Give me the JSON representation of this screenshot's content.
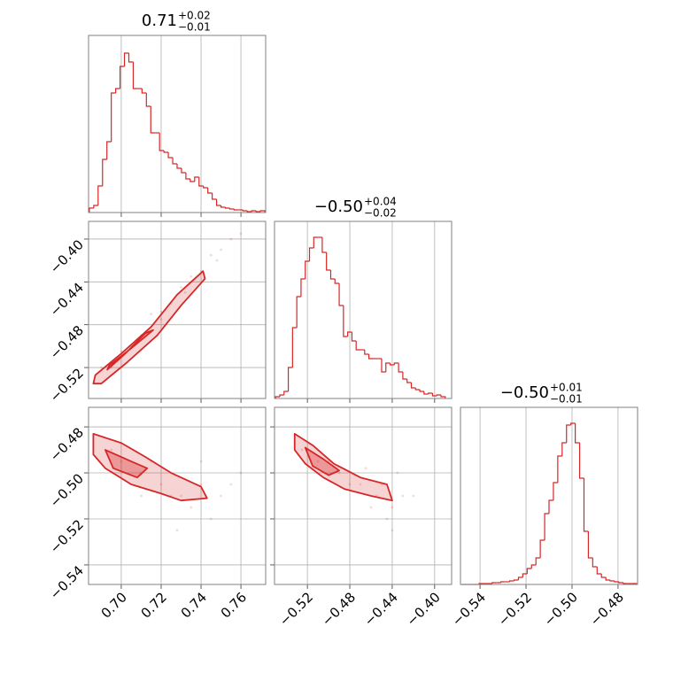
{
  "chart_data": [
    {
      "type": "histogram",
      "title": "0.71",
      "title_upper": "+0.02",
      "title_lower": "−0.01",
      "color": "#d62728",
      "grid": true,
      "bins": [
        0.684,
        0.6862,
        0.6884,
        0.6906,
        0.6928,
        0.695,
        0.6972,
        0.6994,
        0.7016,
        0.7038,
        0.706,
        0.7082,
        0.7104,
        0.7126,
        0.7148,
        0.717,
        0.7192,
        0.7214,
        0.7236,
        0.7258,
        0.728,
        0.7302,
        0.7324,
        0.7346,
        0.7368,
        0.739,
        0.7412,
        0.7434,
        0.7456,
        0.7478,
        0.75,
        0.7522,
        0.7544,
        0.7566,
        0.7588,
        0.761,
        0.7632,
        0.7654,
        0.7676,
        0.7698,
        0.772
      ],
      "values": [
        5,
        8,
        30,
        60,
        80,
        135,
        140,
        165,
        180,
        170,
        140,
        140,
        135,
        120,
        90,
        90,
        70,
        68,
        62,
        55,
        50,
        45,
        38,
        35,
        40,
        30,
        28,
        22,
        15,
        8,
        6,
        5,
        4,
        3,
        3,
        2,
        1,
        2,
        1,
        2
      ],
      "xlim": [
        0.6836,
        0.7724
      ],
      "xticks": [
        0.7,
        0.72,
        0.74,
        0.76
      ],
      "ylim": [
        0,
        200
      ],
      "yticks": []
    },
    {
      "type": "contour",
      "color": "#d62728",
      "grid": true,
      "samples": {
        "x": [
          0.69,
          0.7,
          0.71,
          0.72,
          0.73,
          0.745,
          0.75,
          0.755,
          0.74,
          0.735,
          0.725,
          0.715,
          0.705,
          0.695,
          0.76,
          0.748,
          0.732,
          0.72
        ],
        "y": [
          -0.52,
          -0.505,
          -0.49,
          -0.468,
          -0.445,
          -0.415,
          -0.41,
          -0.4,
          -0.43,
          -0.435,
          -0.46,
          -0.47,
          -0.5,
          -0.52,
          -0.395,
          -0.42,
          -0.45,
          -0.475
        ]
      },
      "contours": [
        {
          "x": [
            0.687,
            0.7,
            0.715,
            0.728,
            0.741,
            0.742,
            0.73,
            0.718,
            0.703,
            0.69,
            0.686
          ],
          "y": [
            -0.527,
            -0.507,
            -0.482,
            -0.452,
            -0.43,
            -0.437,
            -0.462,
            -0.49,
            -0.515,
            -0.535,
            -0.535
          ]
        },
        {
          "x": [
            0.694,
            0.705,
            0.716,
            0.712,
            0.702,
            0.693
          ],
          "y": [
            -0.518,
            -0.502,
            -0.485,
            -0.488,
            -0.507,
            -0.522
          ]
        }
      ],
      "xlim": [
        0.6836,
        0.7724
      ],
      "xticks": [
        0.7,
        0.72,
        0.74,
        0.76
      ],
      "ylim": [
        -0.5489,
        -0.3835
      ],
      "yticks": [
        {
          "value": -0.4,
          "label": "−0.40"
        },
        {
          "value": -0.44,
          "label": "−0.44"
        },
        {
          "value": -0.48,
          "label": "−0.48"
        },
        {
          "value": -0.52,
          "label": "−0.52"
        }
      ]
    },
    {
      "type": "histogram",
      "title": "−0.50",
      "title_upper": "+0.04",
      "title_lower": "−0.02",
      "color": "#d62728",
      "grid": true,
      "bins": [
        -0.55,
        -0.546,
        -0.542,
        -0.538,
        -0.534,
        -0.53,
        -0.526,
        -0.522,
        -0.518,
        -0.514,
        -0.51,
        -0.506,
        -0.502,
        -0.498,
        -0.494,
        -0.49,
        -0.486,
        -0.482,
        -0.478,
        -0.474,
        -0.47,
        -0.466,
        -0.462,
        -0.458,
        -0.454,
        -0.45,
        -0.446,
        -0.442,
        -0.438,
        -0.434,
        -0.43,
        -0.426,
        -0.422,
        -0.418,
        -0.414,
        -0.41,
        -0.406,
        -0.402,
        -0.398,
        -0.394,
        -0.39
      ],
      "values": [
        2,
        4,
        8,
        35,
        80,
        115,
        135,
        155,
        170,
        182,
        182,
        165,
        145,
        135,
        130,
        105,
        70,
        75,
        65,
        55,
        55,
        50,
        45,
        45,
        45,
        30,
        40,
        38,
        40,
        30,
        22,
        18,
        12,
        10,
        8,
        5,
        6,
        3,
        4,
        2
      ],
      "xlim": [
        -0.551,
        -0.384
      ],
      "xticks": [
        -0.52,
        -0.48,
        -0.44,
        -0.4
      ],
      "ylim": [
        0,
        200
      ],
      "yticks": []
    },
    {
      "type": "contour",
      "color": "#d62728",
      "grid": true,
      "samples": {
        "x": [
          0.695,
          0.71,
          0.72,
          0.73,
          0.74,
          0.75,
          0.745,
          0.735,
          0.725,
          0.715,
          0.7,
          0.755,
          0.728,
          0.71,
          0.74,
          0.76
        ],
        "y": [
          -0.49,
          -0.5,
          -0.505,
          -0.51,
          -0.505,
          -0.51,
          -0.52,
          -0.515,
          -0.51,
          -0.495,
          -0.495,
          -0.505,
          -0.525,
          -0.51,
          -0.495,
          -0.5
        ]
      },
      "contours": [
        {
          "x": [
            0.686,
            0.7,
            0.712,
            0.725,
            0.74,
            0.743,
            0.73,
            0.72,
            0.705,
            0.692,
            0.686
          ],
          "y": [
            -0.483,
            -0.487,
            -0.493,
            -0.5,
            -0.506,
            -0.511,
            -0.512,
            -0.509,
            -0.505,
            -0.498,
            -0.492
          ]
        },
        {
          "x": [
            0.692,
            0.705,
            0.713,
            0.708,
            0.696
          ],
          "y": [
            -0.49,
            -0.495,
            -0.498,
            -0.502,
            -0.498
          ]
        }
      ],
      "xlim": [
        0.6836,
        0.7724
      ],
      "xticks": [
        {
          "value": 0.7,
          "label": "0.70"
        },
        {
          "value": 0.72,
          "label": "0.72"
        },
        {
          "value": 0.74,
          "label": "0.74"
        },
        {
          "value": 0.76,
          "label": "0.76"
        }
      ],
      "ylim": [
        -0.5485,
        -0.4715
      ],
      "yticks": [
        {
          "value": -0.48,
          "label": "−0.48"
        },
        {
          "value": -0.5,
          "label": "−0.50"
        },
        {
          "value": -0.52,
          "label": "−0.52"
        },
        {
          "value": -0.54,
          "label": "−0.54"
        }
      ]
    },
    {
      "type": "contour",
      "color": "#d62728",
      "grid": true,
      "samples": {
        "x": [
          -0.525,
          -0.51,
          -0.49,
          -0.47,
          -0.455,
          -0.44,
          -0.43,
          -0.445,
          -0.46,
          -0.48,
          -0.5,
          -0.435,
          -0.42,
          -0.45,
          -0.465,
          -0.44
        ],
        "y": [
          -0.49,
          -0.495,
          -0.5,
          -0.505,
          -0.51,
          -0.515,
          -0.51,
          -0.52,
          -0.515,
          -0.505,
          -0.495,
          -0.5,
          -0.51,
          -0.505,
          -0.498,
          -0.525
        ]
      },
      "contours": [
        {
          "x": [
            -0.532,
            -0.515,
            -0.495,
            -0.47,
            -0.445,
            -0.44,
            -0.46,
            -0.485,
            -0.505,
            -0.522,
            -0.532
          ],
          "y": [
            -0.483,
            -0.488,
            -0.496,
            -0.502,
            -0.505,
            -0.512,
            -0.51,
            -0.507,
            -0.502,
            -0.496,
            -0.49
          ]
        },
        {
          "x": [
            -0.522,
            -0.505,
            -0.49,
            -0.5,
            -0.515
          ],
          "y": [
            -0.489,
            -0.494,
            -0.499,
            -0.501,
            -0.497
          ]
        }
      ],
      "xlim": [
        -0.551,
        -0.384
      ],
      "xticks": [
        {
          "value": -0.52,
          "label": "−0.52"
        },
        {
          "value": -0.48,
          "label": "−0.48"
        },
        {
          "value": -0.44,
          "label": "−0.44"
        },
        {
          "value": -0.4,
          "label": "−0.40"
        }
      ],
      "ylim": [
        -0.5485,
        -0.4715
      ],
      "yticks": [
        -0.48,
        -0.5,
        -0.52,
        -0.54
      ]
    },
    {
      "type": "histogram",
      "title": "−0.50",
      "title_upper": "+0.01",
      "title_lower": "−0.01",
      "color": "#d62728",
      "grid": true,
      "bins": [
        -0.548,
        -0.5461,
        -0.5442,
        -0.5423,
        -0.5404,
        -0.5385,
        -0.5366,
        -0.5347,
        -0.5328,
        -0.5309,
        -0.529,
        -0.5271,
        -0.5252,
        -0.5233,
        -0.5214,
        -0.5195,
        -0.5176,
        -0.5157,
        -0.5138,
        -0.5119,
        -0.51,
        -0.5081,
        -0.5062,
        -0.5043,
        -0.5024,
        -0.5005,
        -0.4986,
        -0.4967,
        -0.4948,
        -0.4929,
        -0.491,
        -0.4891,
        -0.4872,
        -0.4853,
        -0.4834,
        -0.4815,
        -0.4796,
        -0.4777,
        -0.4758,
        -0.4739,
        -0.472
      ],
      "values": [
        0,
        0,
        0,
        0,
        1,
        1,
        1,
        2,
        2,
        3,
        3,
        4,
        5,
        8,
        12,
        18,
        22,
        30,
        50,
        80,
        95,
        115,
        145,
        160,
        180,
        182,
        160,
        120,
        60,
        30,
        20,
        12,
        8,
        5,
        4,
        3,
        2,
        1,
        1,
        1
      ],
      "xlim": [
        -0.5485,
        -0.4715
      ],
      "xticks": [
        {
          "value": -0.54,
          "label": "−0.54"
        },
        {
          "value": -0.52,
          "label": "−0.52"
        },
        {
          "value": -0.5,
          "label": "−0.50"
        },
        {
          "value": -0.48,
          "label": "−0.48"
        }
      ],
      "ylim": [
        0,
        200
      ],
      "yticks": []
    }
  ]
}
